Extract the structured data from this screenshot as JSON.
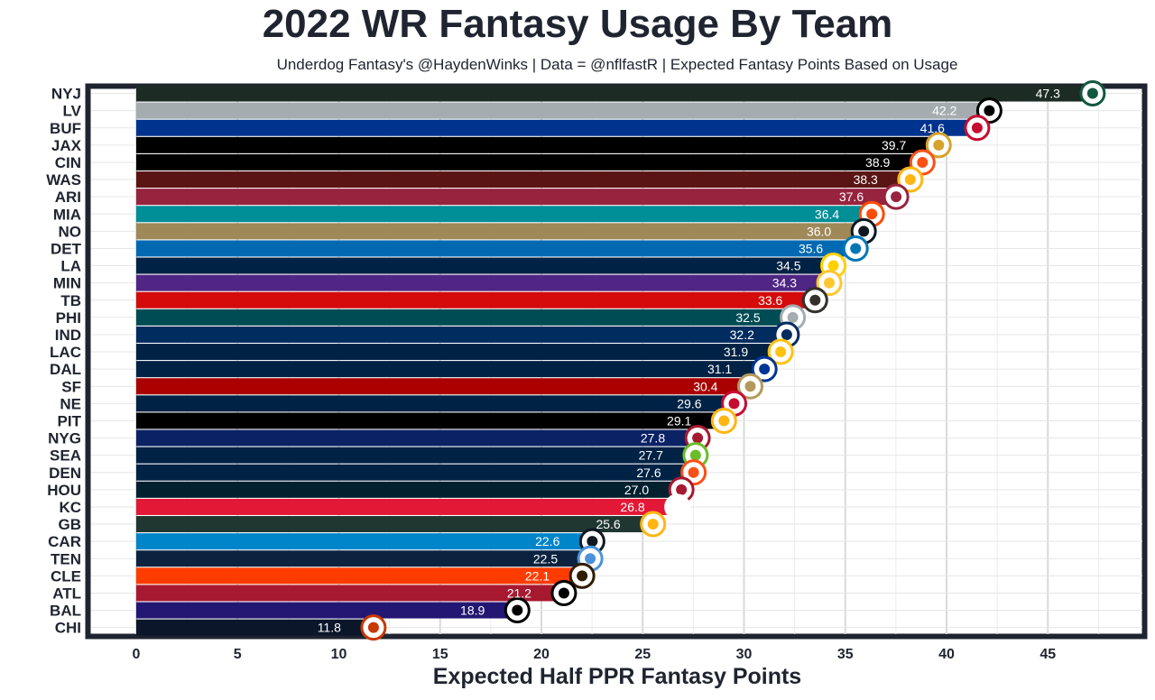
{
  "chart_data": {
    "type": "bar",
    "orientation": "horizontal",
    "title": "2022 WR Fantasy Usage By Team",
    "subtitle": "Underdog Fantasy's @HaydenWinks | Data = @nflfastR | Expected Fantasy Points Based on Usage",
    "xlabel": "Expected Half PPR Fantasy Points",
    "ylabel": "",
    "xlim": [
      0,
      50
    ],
    "xticks": [
      0,
      5,
      10,
      15,
      20,
      25,
      30,
      35,
      40,
      45
    ],
    "grid": true,
    "sorted": "descending",
    "bars": [
      {
        "team": "NYJ",
        "value": 47.3,
        "label": "47.3",
        "color": "#1c2b24",
        "logo_color": "#125740",
        "logo": "jets-logo"
      },
      {
        "team": "LV",
        "value": 42.2,
        "label": "42.2",
        "color": "#a5acaf",
        "logo_color": "#000000",
        "logo": "raiders-logo"
      },
      {
        "team": "BUF",
        "value": 41.6,
        "label": "41.6",
        "color": "#00338d",
        "logo_color": "#c60c30",
        "logo": "bills-logo"
      },
      {
        "team": "JAX",
        "value": 39.7,
        "label": "39.7",
        "color": "#000000",
        "logo_color": "#d7a22a",
        "logo": "jaguars-logo"
      },
      {
        "team": "CIN",
        "value": 38.9,
        "label": "38.9",
        "color": "#000000",
        "logo_color": "#fb4f14",
        "logo": "bengals-logo"
      },
      {
        "team": "WAS",
        "value": 38.3,
        "label": "38.3",
        "color": "#5a1414",
        "logo_color": "#ffb612",
        "logo": "commanders-logo"
      },
      {
        "team": "ARI",
        "value": 37.6,
        "label": "37.6",
        "color": "#97233f",
        "logo_color": "#97233f",
        "logo": "cardinals-logo"
      },
      {
        "team": "MIA",
        "value": 36.4,
        "label": "36.4",
        "color": "#008e97",
        "logo_color": "#fc4c02",
        "logo": "dolphins-logo"
      },
      {
        "team": "NO",
        "value": 36.0,
        "label": "36.0",
        "color": "#9f8958",
        "logo_color": "#101820",
        "logo": "saints-logo"
      },
      {
        "team": "DET",
        "value": 35.6,
        "label": "35.6",
        "color": "#0069b1",
        "logo_color": "#0076b6",
        "logo": "lions-logo"
      },
      {
        "team": "LA",
        "value": 34.5,
        "label": "34.5",
        "color": "#002244",
        "logo_color": "#ffd100",
        "logo": "rams-logo"
      },
      {
        "team": "MIN",
        "value": 34.3,
        "label": "34.3",
        "color": "#4f2683",
        "logo_color": "#ffc62f",
        "logo": "vikings-logo"
      },
      {
        "team": "TB",
        "value": 33.6,
        "label": "33.6",
        "color": "#d50a0a",
        "logo_color": "#34302b",
        "logo": "buccaneers-logo"
      },
      {
        "team": "PHI",
        "value": 32.5,
        "label": "32.5",
        "color": "#004c54",
        "logo_color": "#a5acaf",
        "logo": "eagles-logo"
      },
      {
        "team": "IND",
        "value": 32.2,
        "label": "32.2",
        "color": "#002c5f",
        "logo_color": "#002c5f",
        "logo": "colts-logo"
      },
      {
        "team": "LAC",
        "value": 31.9,
        "label": "31.9",
        "color": "#002244",
        "logo_color": "#ffc20e",
        "logo": "chargers-logo"
      },
      {
        "team": "DAL",
        "value": 31.1,
        "label": "31.1",
        "color": "#002244",
        "logo_color": "#003594",
        "logo": "cowboys-logo"
      },
      {
        "team": "SF",
        "value": 30.4,
        "label": "30.4",
        "color": "#aa0000",
        "logo_color": "#b3995d",
        "logo": "49ers-logo"
      },
      {
        "team": "NE",
        "value": 29.6,
        "label": "29.6",
        "color": "#002244",
        "logo_color": "#c60c30",
        "logo": "patriots-logo"
      },
      {
        "team": "PIT",
        "value": 29.1,
        "label": "29.1",
        "color": "#000000",
        "logo_color": "#ffb612",
        "logo": "steelers-logo"
      },
      {
        "team": "NYG",
        "value": 27.8,
        "label": "27.8",
        "color": "#0b2265",
        "logo_color": "#a71930",
        "logo": "giants-logo"
      },
      {
        "team": "SEA",
        "value": 27.7,
        "label": "27.7",
        "color": "#002244",
        "logo_color": "#69be28",
        "logo": "seahawks-logo"
      },
      {
        "team": "DEN",
        "value": 27.6,
        "label": "27.6",
        "color": "#002244",
        "logo_color": "#fb4f14",
        "logo": "broncos-logo"
      },
      {
        "team": "HOU",
        "value": 27.0,
        "label": "27.0",
        "color": "#03202f",
        "logo_color": "#a71930",
        "logo": "texans-logo"
      },
      {
        "team": "KC",
        "value": 26.8,
        "label": "26.8",
        "color": "#e31837",
        "logo_color": "#ffffff",
        "logo": "chiefs-logo"
      },
      {
        "team": "GB",
        "value": 25.6,
        "label": "25.6",
        "color": "#203731",
        "logo_color": "#ffb612",
        "logo": "packers-logo"
      },
      {
        "team": "CAR",
        "value": 22.6,
        "label": "22.6",
        "color": "#0085ca",
        "logo_color": "#101820",
        "logo": "panthers-logo"
      },
      {
        "team": "TEN",
        "value": 22.5,
        "label": "22.5",
        "color": "#0c2340",
        "logo_color": "#4b92db",
        "logo": "titans-logo"
      },
      {
        "team": "CLE",
        "value": 22.1,
        "label": "22.1",
        "color": "#ff3c00",
        "logo_color": "#311d00",
        "logo": "browns-logo"
      },
      {
        "team": "ATL",
        "value": 21.2,
        "label": "21.2",
        "color": "#a71930",
        "logo_color": "#000000",
        "logo": "falcons-logo"
      },
      {
        "team": "BAL",
        "value": 18.9,
        "label": "18.9",
        "color": "#241773",
        "logo_color": "#000000",
        "logo": "ravens-logo"
      },
      {
        "team": "CHI",
        "value": 11.8,
        "label": "11.8",
        "color": "#0b162a",
        "logo_color": "#c83803",
        "logo": "bears-logo"
      }
    ]
  }
}
